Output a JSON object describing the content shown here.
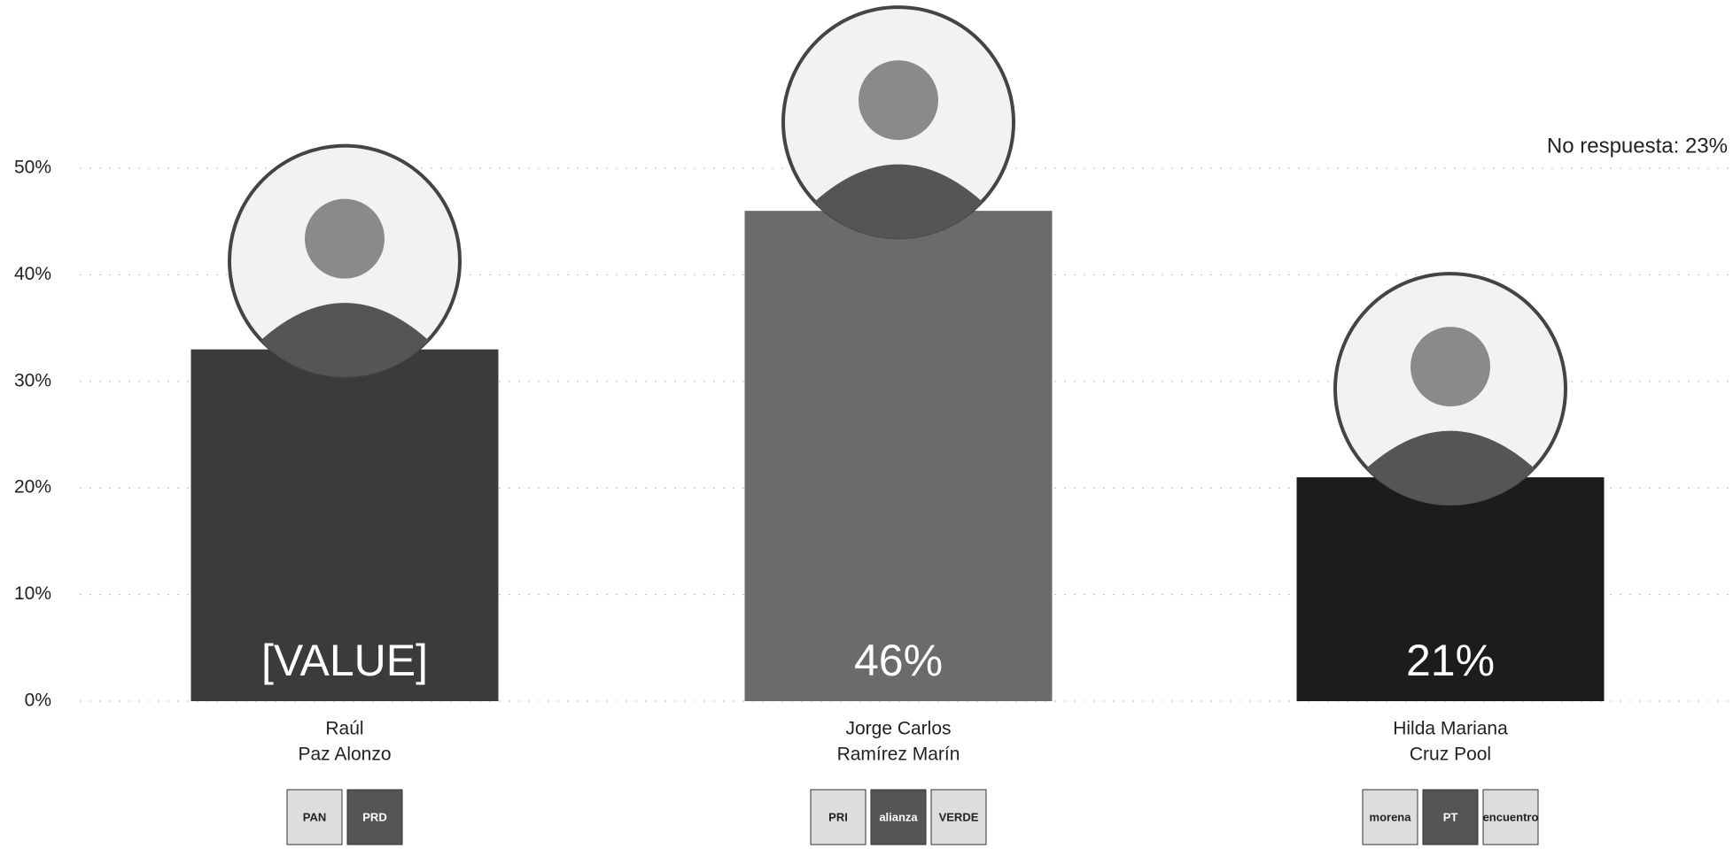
{
  "chart_data": {
    "type": "bar",
    "annotation": "No respuesta: 23%",
    "categories": [
      [
        "Raúl",
        "Paz Alonzo"
      ],
      [
        "Jorge Carlos",
        "Ramírez Marín"
      ],
      [
        "Hilda Mariana",
        "Cruz Pool"
      ]
    ],
    "values": [
      33,
      46,
      21
    ],
    "value_labels": [
      "[VALUE]",
      "46%",
      "21%"
    ],
    "colors": [
      "#3b3b3b",
      "#6b6b6b",
      "#1c1c1c"
    ],
    "party_logos": [
      [
        "PAN",
        "PRD"
      ],
      [
        "PRI",
        "alianza",
        "VERDE"
      ],
      [
        "morena",
        "PT",
        "encuentro"
      ]
    ],
    "ylim": [
      0,
      50
    ],
    "yticks": [
      {
        "value": 0,
        "label": "0%"
      },
      {
        "value": 10,
        "label": "10%"
      },
      {
        "value": 20,
        "label": "20%"
      },
      {
        "value": 30,
        "label": "30%"
      },
      {
        "value": 40,
        "label": "40%"
      },
      {
        "value": 50,
        "label": "50%"
      }
    ],
    "grid": true
  }
}
